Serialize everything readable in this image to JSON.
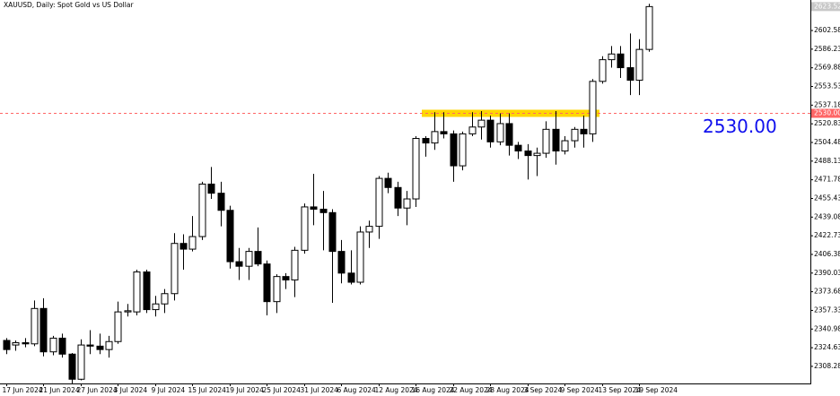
{
  "chart_data": {
    "type": "candlestick",
    "title": "XAUUSD, Daily:  Spot Gold vs US Dollar",
    "categories": [
      "17 Jun 2024",
      null,
      null,
      null,
      "21 Jun 2024",
      null,
      null,
      null,
      "27 Jun 2024",
      null,
      null,
      null,
      "3 Jul 2024",
      null,
      null,
      null,
      "9 Jul 2024",
      null,
      null,
      null,
      "15 Jul 2024",
      null,
      null,
      null,
      "19 Jul 2024",
      null,
      null,
      null,
      "25 Jul 2024",
      null,
      null,
      null,
      "31 Jul 2024",
      null,
      null,
      null,
      "6 Aug 2024",
      null,
      null,
      null,
      "12 Aug 2024",
      null,
      null,
      null,
      "16 Aug 2024",
      null,
      null,
      null,
      "22 Aug 2024",
      null,
      null,
      null,
      "28 Aug 2024",
      null,
      null,
      null,
      "3 Sep 2024",
      null,
      null,
      null,
      "9 Sep 2024",
      null,
      null,
      null,
      "13 Sep 2024",
      null,
      null,
      null,
      "19 Sep 2024",
      null
    ],
    "open": [
      2331,
      2327,
      2329,
      2328,
      2359,
      2321,
      2333,
      2319,
      2297,
      2327,
      2326,
      2323,
      2330,
      2356,
      2356,
      2391,
      2358,
      2363,
      2372,
      2416,
      2411,
      2422,
      2468,
      2460,
      2445,
      2400,
      2396,
      2409,
      2398,
      2365,
      2387,
      2384,
      2410,
      2448,
      2446,
      2443,
      2409,
      2390,
      2382,
      2426,
      2431,
      2473,
      2465,
      2447,
      2455,
      2508,
      2504,
      2514,
      2512,
      2484,
      2512,
      2518,
      2524,
      2505,
      2521,
      2502,
      2497,
      2493,
      2495,
      2516,
      2497,
      2506,
      2516,
      2512,
      2558,
      2577,
      2582,
      2570,
      2559,
      2586
    ],
    "high": [
      2333,
      2331,
      2333,
      2366,
      2368,
      2335,
      2337,
      2320,
      2332,
      2340,
      2337,
      2335,
      2365,
      2363,
      2393,
      2393,
      2370,
      2376,
      2425,
      2424,
      2440,
      2470,
      2483,
      2470,
      2449,
      2412,
      2412,
      2430,
      2401,
      2389,
      2390,
      2413,
      2451,
      2477,
      2462,
      2446,
      2419,
      2410,
      2431,
      2436,
      2475,
      2478,
      2470,
      2462,
      2510,
      2510,
      2531,
      2531,
      2515,
      2514,
      2531,
      2532,
      2528,
      2530,
      2530,
      2505,
      2503,
      2500,
      2523,
      2532,
      2510,
      2518,
      2528,
      2560,
      2580,
      2589,
      2589,
      2600,
      2595,
      2626
    ],
    "low": [
      2319,
      2322,
      2325,
      2326,
      2317,
      2318,
      2316,
      2293,
      2296,
      2319,
      2319,
      2316,
      2328,
      2352,
      2353,
      2355,
      2352,
      2355,
      2366,
      2393,
      2409,
      2419,
      2455,
      2431,
      2394,
      2384,
      2384,
      2396,
      2353,
      2355,
      2376,
      2369,
      2407,
      2432,
      2410,
      2364,
      2381,
      2380,
      2380,
      2412,
      2420,
      2460,
      2440,
      2432,
      2448,
      2492,
      2498,
      2508,
      2470,
      2480,
      2510,
      2507,
      2500,
      2502,
      2493,
      2490,
      2472,
      2475,
      2491,
      2485,
      2494,
      2500,
      2500,
      2505,
      2556,
      2570,
      2561,
      2546,
      2546,
      2584
    ],
    "close": [
      2323,
      2329,
      2328,
      2359,
      2321,
      2333,
      2319,
      2297,
      2327,
      2326,
      2323,
      2330,
      2356,
      2357,
      2391,
      2358,
      2363,
      2372,
      2416,
      2411,
      2422,
      2468,
      2460,
      2445,
      2400,
      2396,
      2409,
      2398,
      2365,
      2387,
      2384,
      2410,
      2448,
      2446,
      2443,
      2409,
      2390,
      2382,
      2426,
      2431,
      2473,
      2465,
      2447,
      2455,
      2508,
      2504,
      2514,
      2512,
      2484,
      2512,
      2518,
      2524,
      2505,
      2521,
      2502,
      2497,
      2493,
      2495,
      2516,
      2497,
      2506,
      2516,
      2512,
      2558,
      2577,
      2582,
      2570,
      2559,
      2586,
      2623.52
    ],
    "up_color": "#ffffff",
    "down_color": "#000000",
    "ylim": [
      2293.3,
      2629.3
    ],
    "yticks": [
      2308.28,
      2324.63,
      2340.98,
      2357.33,
      2373.68,
      2390.03,
      2406.38,
      2422.73,
      2439.08,
      2455.43,
      2471.78,
      2488.13,
      2504.48,
      2520.83,
      2537.18,
      2553.53,
      2569.88,
      2586.23,
      2602.58
    ],
    "grid": false,
    "hline": {
      "value": 2530,
      "label": "2530.00",
      "color": "#ff6666",
      "band_color": "#ffd700",
      "text_color": "#1010ee"
    }
  }
}
